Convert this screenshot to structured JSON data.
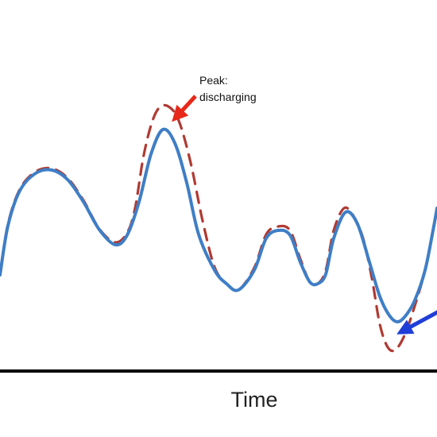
{
  "chart_data": {
    "type": "line",
    "xlabel": "Time",
    "ylabel": "",
    "grid": false,
    "legend": "none",
    "series": [
      {
        "style": "solid",
        "color": "#3f7ec6",
        "points": [
          [
            0,
            346
          ],
          [
            10,
            284
          ],
          [
            25,
            240
          ],
          [
            45,
            218
          ],
          [
            65,
            214
          ],
          [
            85,
            226
          ],
          [
            105,
            254
          ],
          [
            125,
            289
          ],
          [
            145,
            308
          ],
          [
            160,
            296
          ],
          [
            175,
            254
          ],
          [
            190,
            194
          ],
          [
            205,
            163
          ],
          [
            220,
            180
          ],
          [
            235,
            230
          ],
          [
            250,
            295
          ],
          [
            270,
            340
          ],
          [
            285,
            357
          ],
          [
            300,
            365
          ],
          [
            320,
            340
          ],
          [
            335,
            300
          ],
          [
            350,
            290
          ],
          [
            365,
            296
          ],
          [
            378,
            330
          ],
          [
            390,
            355
          ],
          [
            400,
            357
          ],
          [
            410,
            345
          ],
          [
            420,
            300
          ],
          [
            435,
            267
          ],
          [
            450,
            282
          ],
          [
            465,
            330
          ],
          [
            478,
            373
          ],
          [
            490,
            397
          ],
          [
            500,
            405
          ],
          [
            510,
            398
          ],
          [
            522,
            378
          ],
          [
            535,
            340
          ],
          [
            545,
            290
          ],
          [
            550,
            262
          ]
        ]
      },
      {
        "style": "dashed",
        "color": "#b03a33",
        "points": [
          [
            0,
            346
          ],
          [
            10,
            282
          ],
          [
            25,
            238
          ],
          [
            45,
            216
          ],
          [
            65,
            212
          ],
          [
            85,
            224
          ],
          [
            105,
            252
          ],
          [
            125,
            288
          ],
          [
            145,
            305
          ],
          [
            160,
            293
          ],
          [
            170,
            262
          ],
          [
            180,
            200
          ],
          [
            190,
            158
          ],
          [
            200,
            136
          ],
          [
            212,
            134
          ],
          [
            225,
            152
          ],
          [
            240,
            205
          ],
          [
            255,
            278
          ],
          [
            270,
            336
          ],
          [
            285,
            357
          ],
          [
            300,
            365
          ],
          [
            320,
            337
          ],
          [
            335,
            295
          ],
          [
            350,
            285
          ],
          [
            365,
            290
          ],
          [
            378,
            326
          ],
          [
            390,
            355
          ],
          [
            400,
            357
          ],
          [
            410,
            340
          ],
          [
            420,
            290
          ],
          [
            433,
            262
          ],
          [
            445,
            272
          ],
          [
            457,
            300
          ],
          [
            468,
            350
          ],
          [
            478,
            408
          ],
          [
            488,
            437
          ],
          [
            498,
            440
          ],
          [
            510,
            420
          ],
          [
            522,
            385
          ],
          [
            535,
            340
          ],
          [
            545,
            290
          ],
          [
            550,
            262
          ]
        ]
      }
    ],
    "annotations": [
      {
        "text_lines": [
          "Peak:",
          "discharging"
        ],
        "arrow_color": "#e8281a"
      },
      {
        "text_lines": [],
        "arrow_color": "#1f3ed8"
      }
    ]
  }
}
